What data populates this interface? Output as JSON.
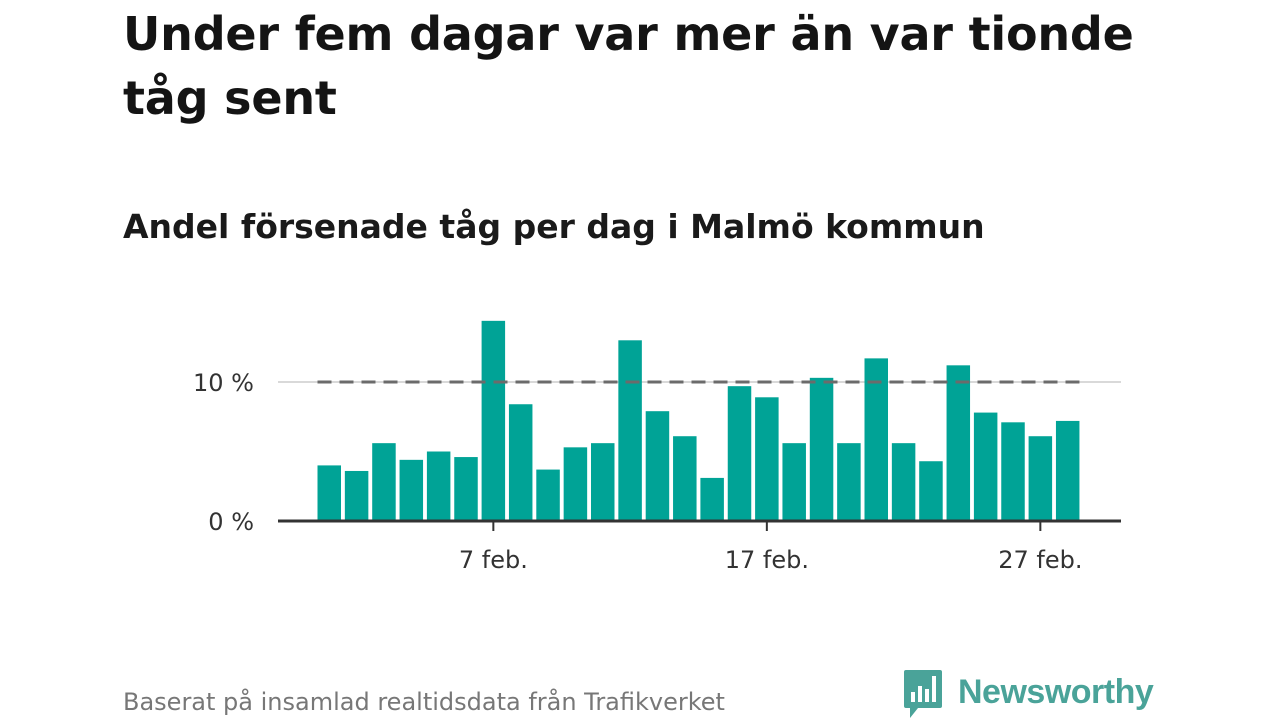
{
  "header": {
    "title": "Under fem dagar var mer än var tionde tåg sent",
    "subtitle": "Andel försenade tåg per dag i Malmö kommun"
  },
  "footer": {
    "source": "Baserat på insamlad realtidsdata från Trafikverket",
    "brand": "Newsworthy"
  },
  "colors": {
    "bar": "#00a396",
    "reference_line": "#6b6b6b",
    "grid": "#d9d9d9",
    "axis": "#333333",
    "brand": "#4aa399"
  },
  "chart_data": {
    "type": "bar",
    "x": [
      "1 feb.",
      "2 feb.",
      "3 feb.",
      "4 feb.",
      "5 feb.",
      "6 feb.",
      "7 feb.",
      "8 feb.",
      "9 feb.",
      "10 feb.",
      "11 feb.",
      "12 feb.",
      "13 feb.",
      "14 feb.",
      "15 feb.",
      "16 feb.",
      "17 feb.",
      "18 feb.",
      "19 feb.",
      "20 feb.",
      "21 feb.",
      "22 feb.",
      "23 feb.",
      "24 feb.",
      "25 feb.",
      "26 feb.",
      "27 feb.",
      "28 feb."
    ],
    "values": [
      4.0,
      3.6,
      5.6,
      4.4,
      5.0,
      4.6,
      14.4,
      8.4,
      3.7,
      5.3,
      5.6,
      13.0,
      7.9,
      6.1,
      3.1,
      9.7,
      8.9,
      5.6,
      10.3,
      5.6,
      11.7,
      5.6,
      4.3,
      11.2,
      7.8,
      7.1,
      6.1,
      7.2
    ],
    "x_ticks": [
      "7 feb.",
      "17 feb.",
      "27 feb."
    ],
    "y_ticks": [
      0,
      10
    ],
    "y_tick_labels": [
      "0 %",
      "10 %"
    ],
    "reference_value": 10,
    "ylim": [
      0,
      15.5
    ],
    "grid": true,
    "unit": "%"
  }
}
